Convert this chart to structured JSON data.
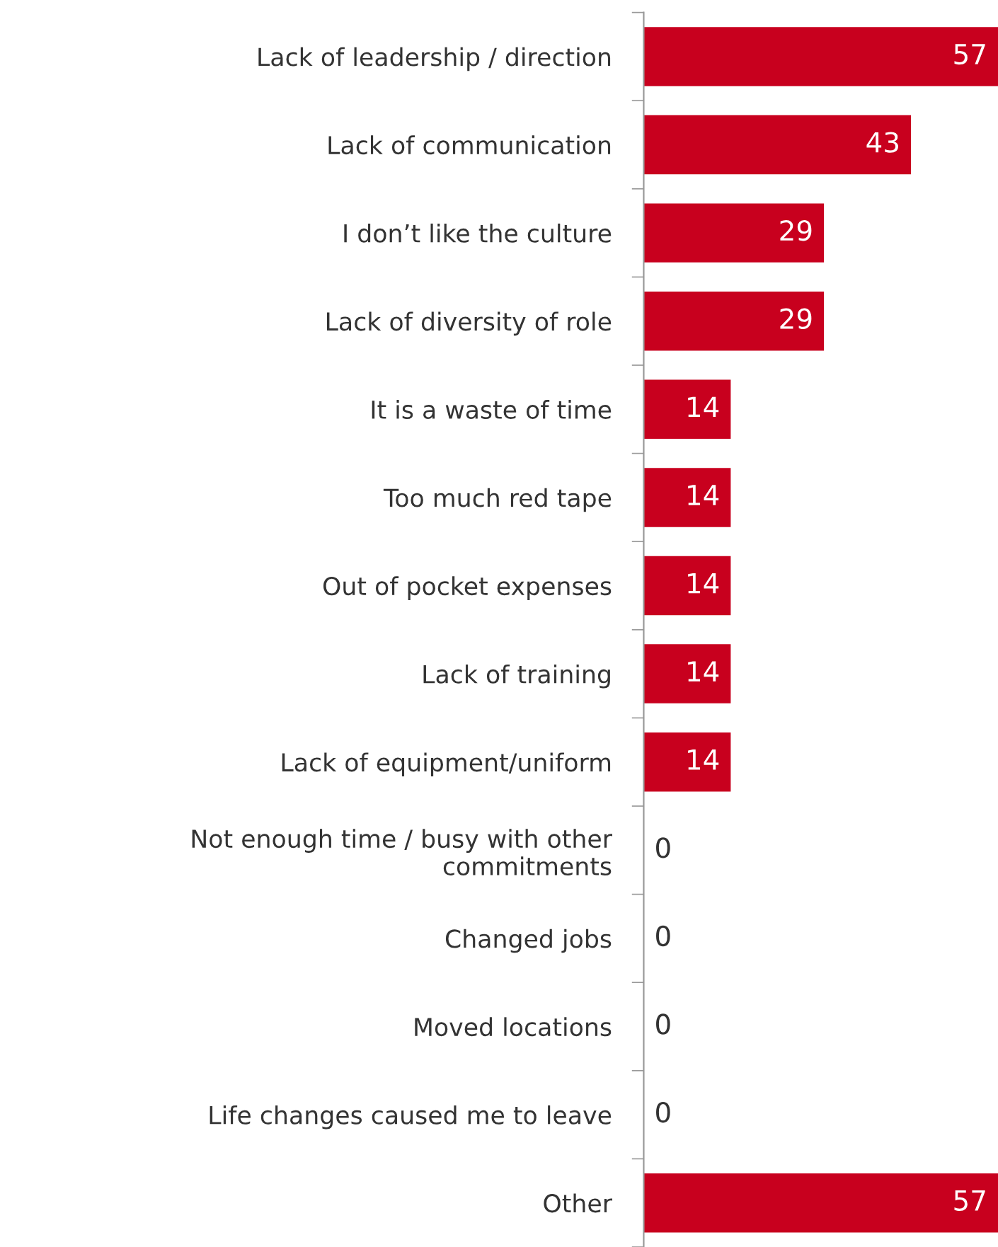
{
  "chart_data": {
    "type": "bar",
    "orientation": "horizontal",
    "categories": [
      "Lack of leadership / direction",
      "Lack of communication",
      "I don’t like the culture",
      "Lack of diversity of role",
      "It is a waste of time",
      "Too much red tape",
      "Out of pocket expenses",
      "Lack of training",
      "Lack of equipment/uniform",
      "Not enough time / busy with other\ncommitments",
      "Changed jobs",
      "Moved locations",
      "Life changes caused me to leave",
      "Other"
    ],
    "values": [
      57,
      43,
      29,
      29,
      14,
      14,
      14,
      14,
      14,
      0,
      0,
      0,
      0,
      57
    ],
    "color": "#c8001e",
    "data_labels": true,
    "grid": false,
    "legend": false,
    "tick_labels": "y"
  }
}
